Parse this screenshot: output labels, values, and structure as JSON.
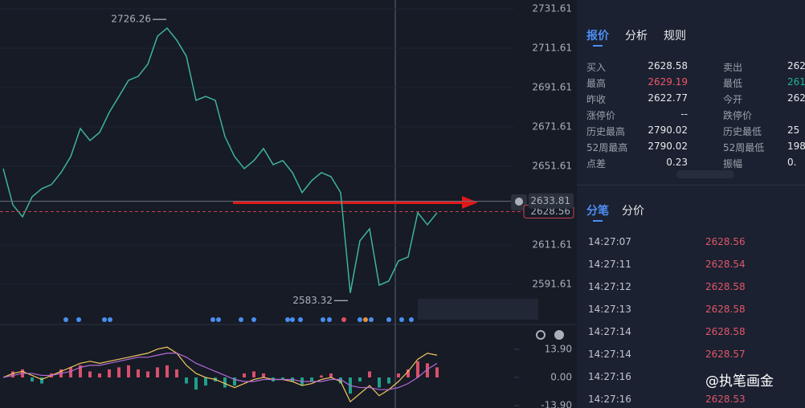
{
  "chart_data": [
    {
      "type": "line",
      "color": "#3fb39a",
      "grid": true,
      "ylim": [
        2571.61,
        2736.1
      ],
      "yticks": [
        2591.61,
        2611.61,
        2651.61,
        2671.61,
        2691.61,
        2711.61,
        2731.61
      ],
      "values": [
        2650.4,
        2632.0,
        2625.9,
        2636.1,
        2640.2,
        2642.3,
        2648.4,
        2656.5,
        2670.8,
        2664.7,
        2668.8,
        2679.0,
        2687.1,
        2695.3,
        2697.3,
        2703.5,
        2717.7,
        2721.8,
        2715.7,
        2707.5,
        2685.1,
        2687.1,
        2685.1,
        2666.7,
        2656.5,
        2650.4,
        2654.5,
        2660.6,
        2652.4,
        2654.5,
        2648.4,
        2638.2,
        2644.3,
        2648.4,
        2646.3,
        2638.2,
        2587.2,
        2613.7,
        2619.8,
        2591.2,
        2593.3,
        2603.5,
        2605.5,
        2628.0,
        2621.9,
        2628.0
      ],
      "high": 2726.26,
      "low": 2583.32,
      "last": 2633.81,
      "current": 2628.56
    },
    {
      "type": "macd",
      "ylim": [
        -15.1,
        25.8
      ],
      "yticks": [
        {
          "value": 13.9,
          "label": "13.90"
        },
        {
          "value": 0,
          "label": "0.00"
        },
        {
          "value": -13.9,
          "label": "-13.90"
        }
      ],
      "series": [
        {
          "style": "bar",
          "color": "#d9506a",
          "negative_color": "#1f9f8a",
          "values": [
            0,
            3,
            4,
            -2,
            -3,
            2,
            4,
            5,
            6,
            3,
            2,
            4,
            5,
            6,
            4,
            3,
            5,
            6,
            4,
            -3,
            -6,
            -4,
            -2,
            -5,
            -4,
            2,
            3,
            2,
            -2,
            -1,
            -2,
            -4,
            -2,
            1,
            2,
            -3,
            -8,
            -2,
            3,
            -5,
            -3,
            2,
            4,
            8,
            7,
            5
          ]
        },
        {
          "style": "line",
          "color": "#f0c75e",
          "values": [
            0,
            2,
            3,
            1,
            -1,
            1,
            3,
            5,
            7,
            8,
            7,
            8,
            9,
            10,
            11,
            12,
            14,
            15,
            12,
            6,
            2,
            0,
            -1,
            -3,
            -5,
            -3,
            -1,
            0,
            -1,
            -1,
            -2,
            -4,
            -3,
            -1,
            0,
            -2,
            -12,
            -8,
            -4,
            -9,
            -6,
            -2,
            3,
            9,
            12,
            11
          ]
        },
        {
          "style": "line",
          "color": "#b86ad8",
          "values": [
            0,
            1,
            2,
            2,
            1,
            1,
            2,
            3,
            5,
            6,
            6,
            7,
            8,
            9,
            10,
            10,
            11,
            12,
            12,
            10,
            7,
            5,
            3,
            1,
            -1,
            -2,
            -2,
            -1,
            -1,
            -1,
            -1,
            -2,
            -2,
            -2,
            -1,
            -1,
            -4,
            -5,
            -5,
            -6,
            -6,
            -5,
            -3,
            0,
            4,
            7
          ]
        }
      ]
    }
  ],
  "quote_tabs": [
    "报价",
    "分析",
    "规则"
  ],
  "quote": {
    "left": [
      {
        "label": "买入",
        "value": "2628.58"
      },
      {
        "label": "最高",
        "value": "2629.19",
        "color": "#f0566a"
      },
      {
        "label": "昨收",
        "value": "2622.77"
      },
      {
        "label": "涨停价",
        "value": "--"
      },
      {
        "label": "历史最高",
        "value": "2790.02"
      },
      {
        "label": "52周最高",
        "value": "2790.02"
      },
      {
        "label": "点差",
        "value": "0.23"
      }
    ],
    "right": [
      {
        "label": "卖出",
        "value": "262"
      },
      {
        "label": "最低",
        "value": "261",
        "color": "#1fb39a"
      },
      {
        "label": "今开",
        "value": "262"
      },
      {
        "label": "跌停价"
      },
      {
        "label": "历史最低",
        "value": "25"
      },
      {
        "label": "52周最低",
        "value": "198"
      },
      {
        "label": "振幅",
        "value": "0."
      }
    ]
  },
  "trade_tabs": [
    "分笔",
    "分价"
  ],
  "trades": [
    {
      "time": "14:27:07",
      "price": "2628.56"
    },
    {
      "time": "14:27:11",
      "price": "2628.54"
    },
    {
      "time": "14:27:12",
      "price": "2628.58"
    },
    {
      "time": "14:27:13",
      "price": "2628.58"
    },
    {
      "time": "14:27:14",
      "price": "2628.58"
    },
    {
      "time": "14:27:14",
      "price": "2628.57"
    },
    {
      "time": "14:27:16"
    },
    {
      "time": "14:27:16",
      "price": "2628.53"
    }
  ],
  "watermark": "@执笔画金"
}
